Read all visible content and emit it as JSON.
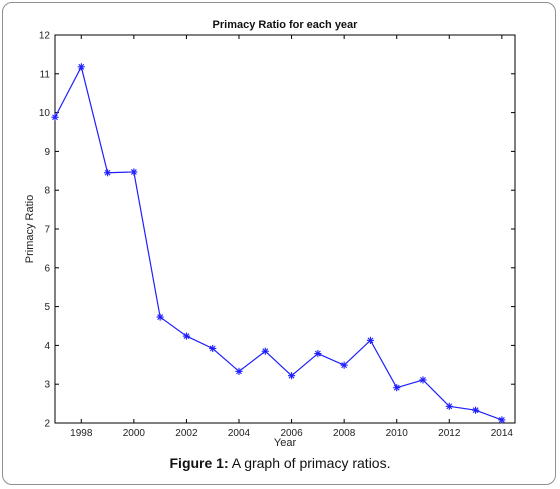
{
  "chart_data": {
    "type": "line",
    "title": "Primacy Ratio for each year",
    "xlabel": "Year",
    "ylabel": "Primacy Ratio",
    "xlim": [
      1997,
      2014.5
    ],
    "ylim": [
      2,
      12
    ],
    "xticks": [
      1998,
      2000,
      2002,
      2004,
      2006,
      2008,
      2010,
      2012,
      2014
    ],
    "yticks": [
      2,
      3,
      4,
      5,
      6,
      7,
      8,
      9,
      10,
      11,
      12
    ],
    "grid": false,
    "series": [
      {
        "x": [
          1997,
          1998,
          1999,
          2000,
          2001,
          2002,
          2003,
          2004,
          2005,
          2006,
          2007,
          2008,
          2009,
          2010,
          2011,
          2012,
          2013,
          2014
        ],
        "y": [
          9.88,
          11.18,
          8.45,
          8.47,
          4.73,
          4.24,
          3.92,
          3.33,
          3.85,
          3.22,
          3.79,
          3.49,
          4.13,
          2.91,
          3.11,
          2.43,
          2.33,
          2.08
        ],
        "color": "#1f1fff",
        "marker": "asterisk"
      }
    ]
  },
  "caption": {
    "label": "Figure 1:",
    "text": " A graph of primacy ratios."
  }
}
